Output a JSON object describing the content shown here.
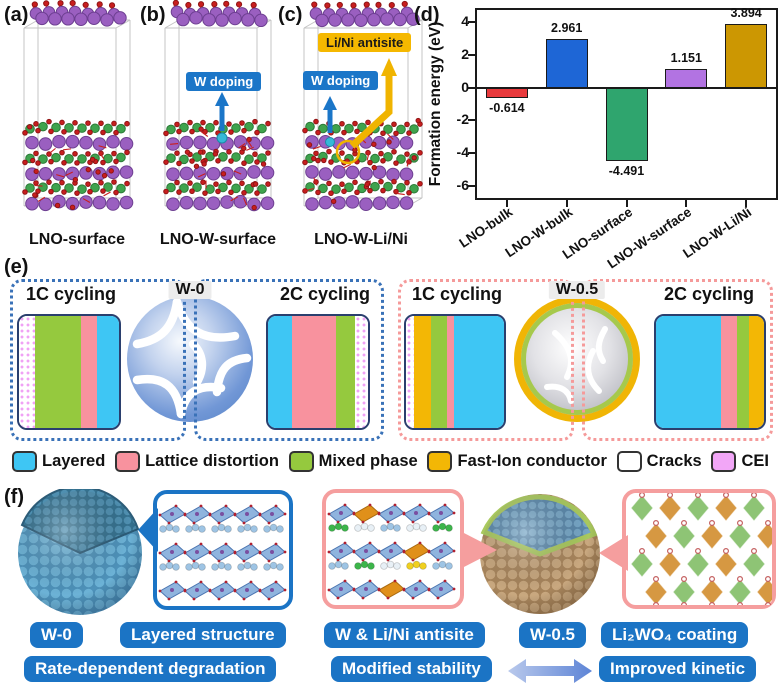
{
  "figure": {
    "panel_a": {
      "label": "(a)",
      "caption": "LNO-surface"
    },
    "panel_b": {
      "label": "(b)",
      "caption": "LNO-W-surface",
      "doping_label": "W doping"
    },
    "panel_c": {
      "label": "(c)",
      "caption": "LNO-W-Li/Ni",
      "doping_label": "W doping",
      "antisite_label": "Li/Ni antisite"
    },
    "panel_d": {
      "label": "(d)"
    },
    "panel_e": {
      "label": "(e)"
    },
    "panel_f": {
      "label": "(f)"
    }
  },
  "colors": {
    "annotation_blue": "#1b76c8",
    "annotation_amber": "#f5b800",
    "button_blue": "#1b74c5",
    "dotted_blue": "#3a72b8",
    "dotted_pink": "#f59a9a",
    "atom_purple": "#9a5fc0",
    "atom_green": "#3fa34d",
    "atom_red": "#c81e1e",
    "atom_tungsten": "#35b8d8"
  },
  "chart_data": {
    "type": "bar",
    "title": "",
    "xlabel": "",
    "ylabel": "Formation energy (eV)",
    "categories": [
      "LNO-bulk",
      "LNO-W-bulk",
      "LNO-surface",
      "LNO-W-surface",
      "LNO-W-Li/Ni"
    ],
    "values": [
      -0.614,
      2.961,
      -4.491,
      1.151,
      3.894
    ],
    "data_labels": [
      "-0.614",
      "2.961",
      "-4.491",
      "1.151",
      "3.894"
    ],
    "bar_colors": [
      "#e8393c",
      "#1e66d6",
      "#2fa56e",
      "#b273e2",
      "#cc9702"
    ],
    "yticks": [
      4,
      2,
      0,
      -2,
      -4,
      -6
    ],
    "ylim": [
      -6.75,
      4.75
    ],
    "grid": false,
    "legend_position": "none"
  },
  "panel_e": {
    "legend": [
      {
        "key": "layered",
        "label": "Layered",
        "color": "#3ec6f4"
      },
      {
        "key": "lattice",
        "label": "Lattice distortion",
        "color": "#f8929e"
      },
      {
        "key": "mixed",
        "label": "Mixed phase",
        "color": "#95c93e"
      },
      {
        "key": "fastion",
        "label": "Fast-Ion conductor",
        "color": "#f3b705"
      },
      {
        "key": "cracks",
        "label": "Cracks",
        "color": "#ffffff"
      },
      {
        "key": "cei",
        "label": "CEI",
        "color": "#f2a6f7"
      }
    ],
    "groups": [
      {
        "name": "W-0",
        "left_title": "1C cycling",
        "right_title": "2C cycling",
        "center_label": "W-0",
        "left_stripes": [
          [
            "cei",
            16
          ],
          [
            "mixed",
            46
          ],
          [
            "lattice",
            16
          ],
          [
            "layered",
            22
          ]
        ],
        "right_stripes": [
          [
            "layered",
            24
          ],
          [
            "lattice",
            44
          ],
          [
            "mixed",
            19
          ],
          [
            "cei",
            13
          ]
        ]
      },
      {
        "name": "W-0.5",
        "left_title": "1C cycling",
        "right_title": "2C cycling",
        "center_label": "W-0.5",
        "left_stripes": [
          [
            "cei",
            8
          ],
          [
            "fastion",
            18
          ],
          [
            "mixed",
            16
          ],
          [
            "lattice",
            7
          ],
          [
            "layered",
            51
          ]
        ],
        "right_stripes": [
          [
            "layered",
            60
          ],
          [
            "lattice",
            15
          ],
          [
            "mixed",
            11
          ],
          [
            "fastion",
            14
          ]
        ]
      }
    ]
  },
  "panel_f": {
    "buttons": {
      "w0": "W-0",
      "layered_structure": "Layered structure",
      "rate_degradation": "Rate-dependent degradation",
      "antisite": "W & Li/Ni antisite",
      "modified_stability": "Modified stability",
      "w05": "W-0.5",
      "coating": "Li₂WO₄ coating",
      "improved_kinetic": "Improved kinetic"
    }
  }
}
